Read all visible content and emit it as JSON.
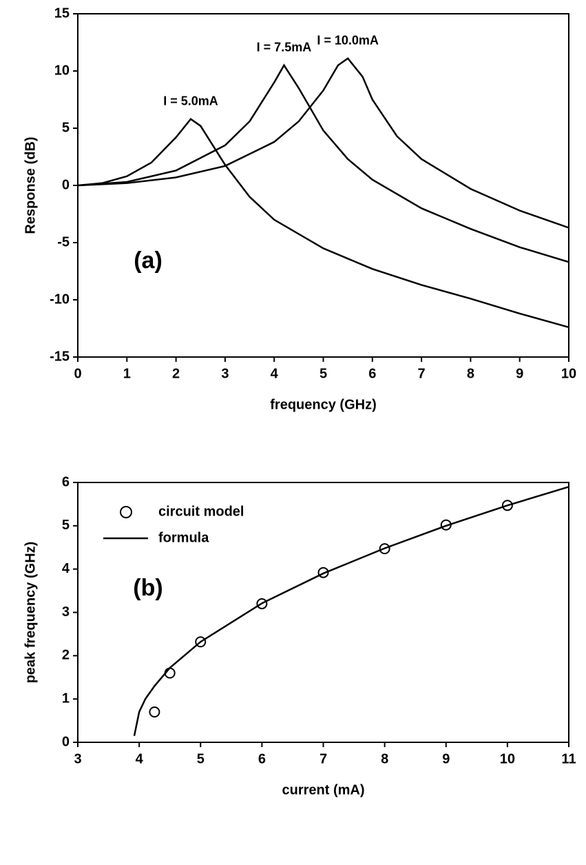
{
  "chart_data": [
    {
      "type": "line",
      "annotation": "(a)",
      "x_label": "frequency (GHz)",
      "y_label": "Response (dB)",
      "xlim": [
        0,
        10
      ],
      "ylim": [
        -15,
        15
      ],
      "xticks": [
        0,
        1,
        2,
        3,
        4,
        5,
        6,
        7,
        8,
        9,
        10
      ],
      "yticks": [
        -15,
        -10,
        -5,
        0,
        5,
        10,
        15
      ],
      "series": [
        {
          "name": "I = 5.0mA",
          "color": "#000000",
          "x": [
            0,
            0.5,
            1,
            1.5,
            2,
            2.3,
            2.5,
            3,
            3.5,
            4,
            5,
            6,
            7,
            8,
            9,
            10
          ],
          "values": [
            0,
            0.2,
            0.8,
            2,
            4.2,
            5.8,
            5.2,
            1.8,
            -1,
            -3,
            -5.5,
            -7.3,
            -8.7,
            -9.9,
            -11.2,
            -12.4
          ]
        },
        {
          "name": "I = 7.5mA",
          "color": "#000000",
          "x": [
            0,
            1,
            2,
            3,
            3.5,
            4,
            4.2,
            4.5,
            5,
            5.5,
            6,
            7,
            8,
            9,
            10
          ],
          "values": [
            0,
            0.3,
            1.3,
            3.5,
            5.6,
            9,
            10.5,
            8.5,
            4.8,
            2.3,
            0.5,
            -2,
            -3.8,
            -5.4,
            -6.7
          ]
        },
        {
          "name": "I = 10.0mA",
          "color": "#000000",
          "x": [
            0,
            1,
            2,
            3,
            4,
            4.5,
            5,
            5.3,
            5.5,
            5.8,
            6,
            6.5,
            7,
            8,
            9,
            10
          ],
          "values": [
            0,
            0.2,
            0.7,
            1.7,
            3.8,
            5.6,
            8.3,
            10.5,
            11.1,
            9.5,
            7.5,
            4.3,
            2.3,
            -0.3,
            -2.2,
            -3.7
          ]
        }
      ]
    },
    {
      "type": "scatter",
      "annotation": "(b)",
      "x_label": "current (mA)",
      "y_label": "peak frequency (GHz)",
      "xlim": [
        3,
        11
      ],
      "ylim": [
        0,
        6
      ],
      "xticks": [
        3,
        4,
        5,
        6,
        7,
        8,
        9,
        10,
        11
      ],
      "yticks": [
        0,
        1,
        2,
        3,
        4,
        5,
        6
      ],
      "series": [
        {
          "name": "circuit model",
          "type": "scatter",
          "color": "#000000",
          "x": [
            4.25,
            4.5,
            5,
            6,
            7,
            8,
            9,
            10
          ],
          "values": [
            0.7,
            1.6,
            2.32,
            3.2,
            3.92,
            4.47,
            5.02,
            5.47
          ]
        },
        {
          "name": "formula",
          "type": "line",
          "color": "#000000",
          "x": [
            3.92,
            4,
            4.1,
            4.25,
            4.5,
            5,
            6,
            7,
            8,
            9,
            10,
            11
          ],
          "values": [
            0.15,
            0.7,
            1.0,
            1.3,
            1.72,
            2.32,
            3.21,
            3.9,
            4.48,
            5.0,
            5.47,
            5.9
          ]
        }
      ]
    }
  ]
}
